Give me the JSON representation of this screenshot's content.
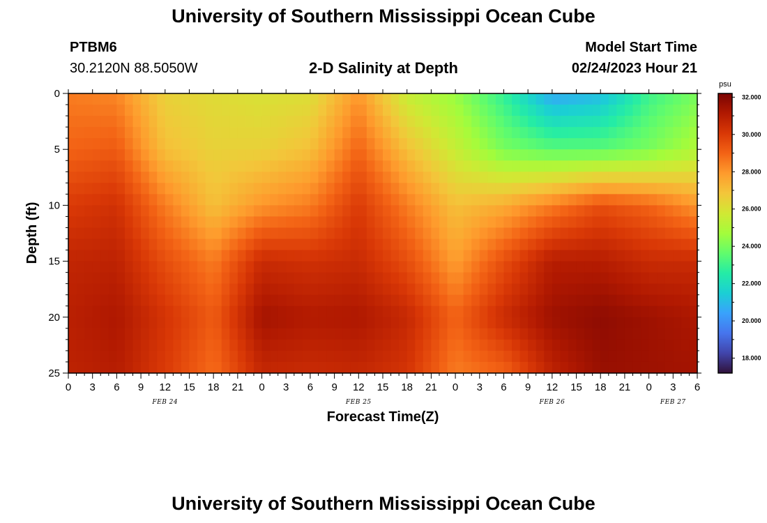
{
  "page": {
    "title_top": "University of Southern Mississippi Ocean Cube",
    "title_bottom": "University of Southern Mississippi Ocean Cube",
    "station_id": "PTBM6",
    "station_coords": "30.2120N  88.5050W",
    "model_start_label": "Model Start Time",
    "model_start_value": "02/24/2023 Hour 21"
  },
  "chart_data": {
    "type": "heatmap",
    "title": "2-D Salinity at Depth",
    "xlabel": "Forecast Time(Z)",
    "ylabel": "Depth (ft)",
    "x_range_hours": [
      0,
      78
    ],
    "y_range_ft": [
      0,
      25
    ],
    "x_ticks": [
      "0",
      "3",
      "6",
      "9",
      "12",
      "15",
      "18",
      "21",
      "0",
      "3",
      "6",
      "9",
      "12",
      "15",
      "18",
      "21",
      "0",
      "3",
      "6",
      "9",
      "12",
      "15",
      "18",
      "21",
      "0",
      "3",
      "6"
    ],
    "y_ticks": [
      "0",
      "5",
      "10",
      "15",
      "20",
      "25"
    ],
    "date_labels": [
      {
        "label": "FEB 24",
        "hour": 12
      },
      {
        "label": "FEB 25",
        "hour": 36
      },
      {
        "label": "FEB 26",
        "hour": 60
      },
      {
        "label": "FEB 27",
        "hour": 75
      }
    ],
    "colorbar": {
      "unit": "psu",
      "min": 17.2,
      "max": 32.2,
      "tick_labels": [
        "32.000",
        "30.000",
        "28.000",
        "26.000",
        "24.000",
        "22.000",
        "20.000",
        "18.000"
      ],
      "tick_values": [
        32,
        30,
        28,
        26,
        24,
        22,
        20,
        18
      ]
    },
    "time_hours": [
      0,
      6,
      12,
      18,
      24,
      30,
      36,
      42,
      48,
      54,
      60,
      66,
      72,
      78
    ],
    "depth_ft": [
      0,
      5,
      10,
      15,
      20,
      25
    ],
    "salinity_psu": [
      [
        28.5,
        28.3,
        26.5,
        26.2,
        26.0,
        26.1,
        28.0,
        25.5,
        24.5,
        22.8,
        20.5,
        21.0,
        23.0,
        24.0
      ],
      [
        29.0,
        29.2,
        27.0,
        26.5,
        26.5,
        27.0,
        29.0,
        27.0,
        25.5,
        24.0,
        23.5,
        23.5,
        24.0,
        25.0
      ],
      [
        30.0,
        30.3,
        28.5,
        27.0,
        28.0,
        28.5,
        30.0,
        28.5,
        27.0,
        27.5,
        28.5,
        29.5,
        29.0,
        28.0
      ],
      [
        30.7,
        30.8,
        29.5,
        28.5,
        30.5,
        30.3,
        30.5,
        29.5,
        27.8,
        29.5,
        31.0,
        31.0,
        30.5,
        30.5
      ],
      [
        30.9,
        31.2,
        30.2,
        29.2,
        31.4,
        31.1,
        31.2,
        30.6,
        29.0,
        30.5,
        31.5,
        31.8,
        31.5,
        31.2
      ],
      [
        30.8,
        31.0,
        30.0,
        28.8,
        30.6,
        30.5,
        30.6,
        30.2,
        28.5,
        29.0,
        30.8,
        31.6,
        31.5,
        31.4
      ]
    ]
  },
  "colors": {
    "background": "#ffffff",
    "scale": [
      "#30123b",
      "#4145ab",
      "#4675ed",
      "#39a2fc",
      "#1bcfd4",
      "#24eca6",
      "#61fc6c",
      "#a4fc3b",
      "#d1e834",
      "#f3c63a",
      "#fe9b2d",
      "#f36315",
      "#d93806",
      "#b11901",
      "#7a0402"
    ]
  }
}
